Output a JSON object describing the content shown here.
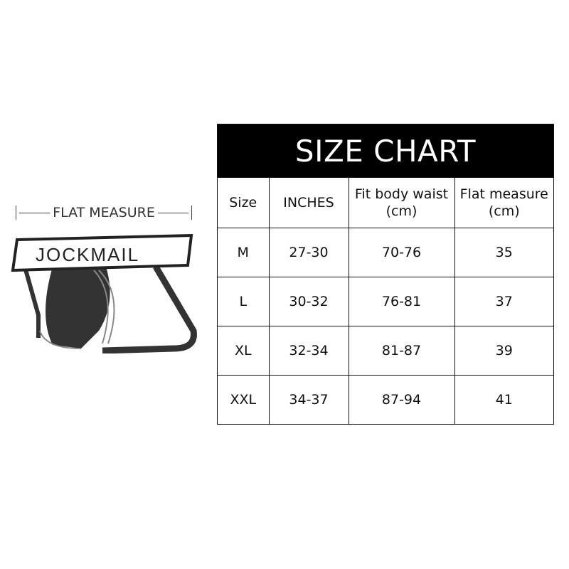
{
  "illustration": {
    "measure_label": "FLAT MEASURE",
    "brand": "JOCKMAIL"
  },
  "chart": {
    "title": "SIZE CHART",
    "headers": [
      "Size",
      "INCHES",
      "Fit body waist\n(cm)",
      "Flat measure\n(cm)"
    ],
    "rows": [
      [
        "M",
        "27-30",
        "70-76",
        "35"
      ],
      [
        "L",
        "30-32",
        "76-81",
        "37"
      ],
      [
        "XL",
        "32-34",
        "81-87",
        "39"
      ],
      [
        "XXL",
        "34-37",
        "87-94",
        "41"
      ]
    ]
  }
}
